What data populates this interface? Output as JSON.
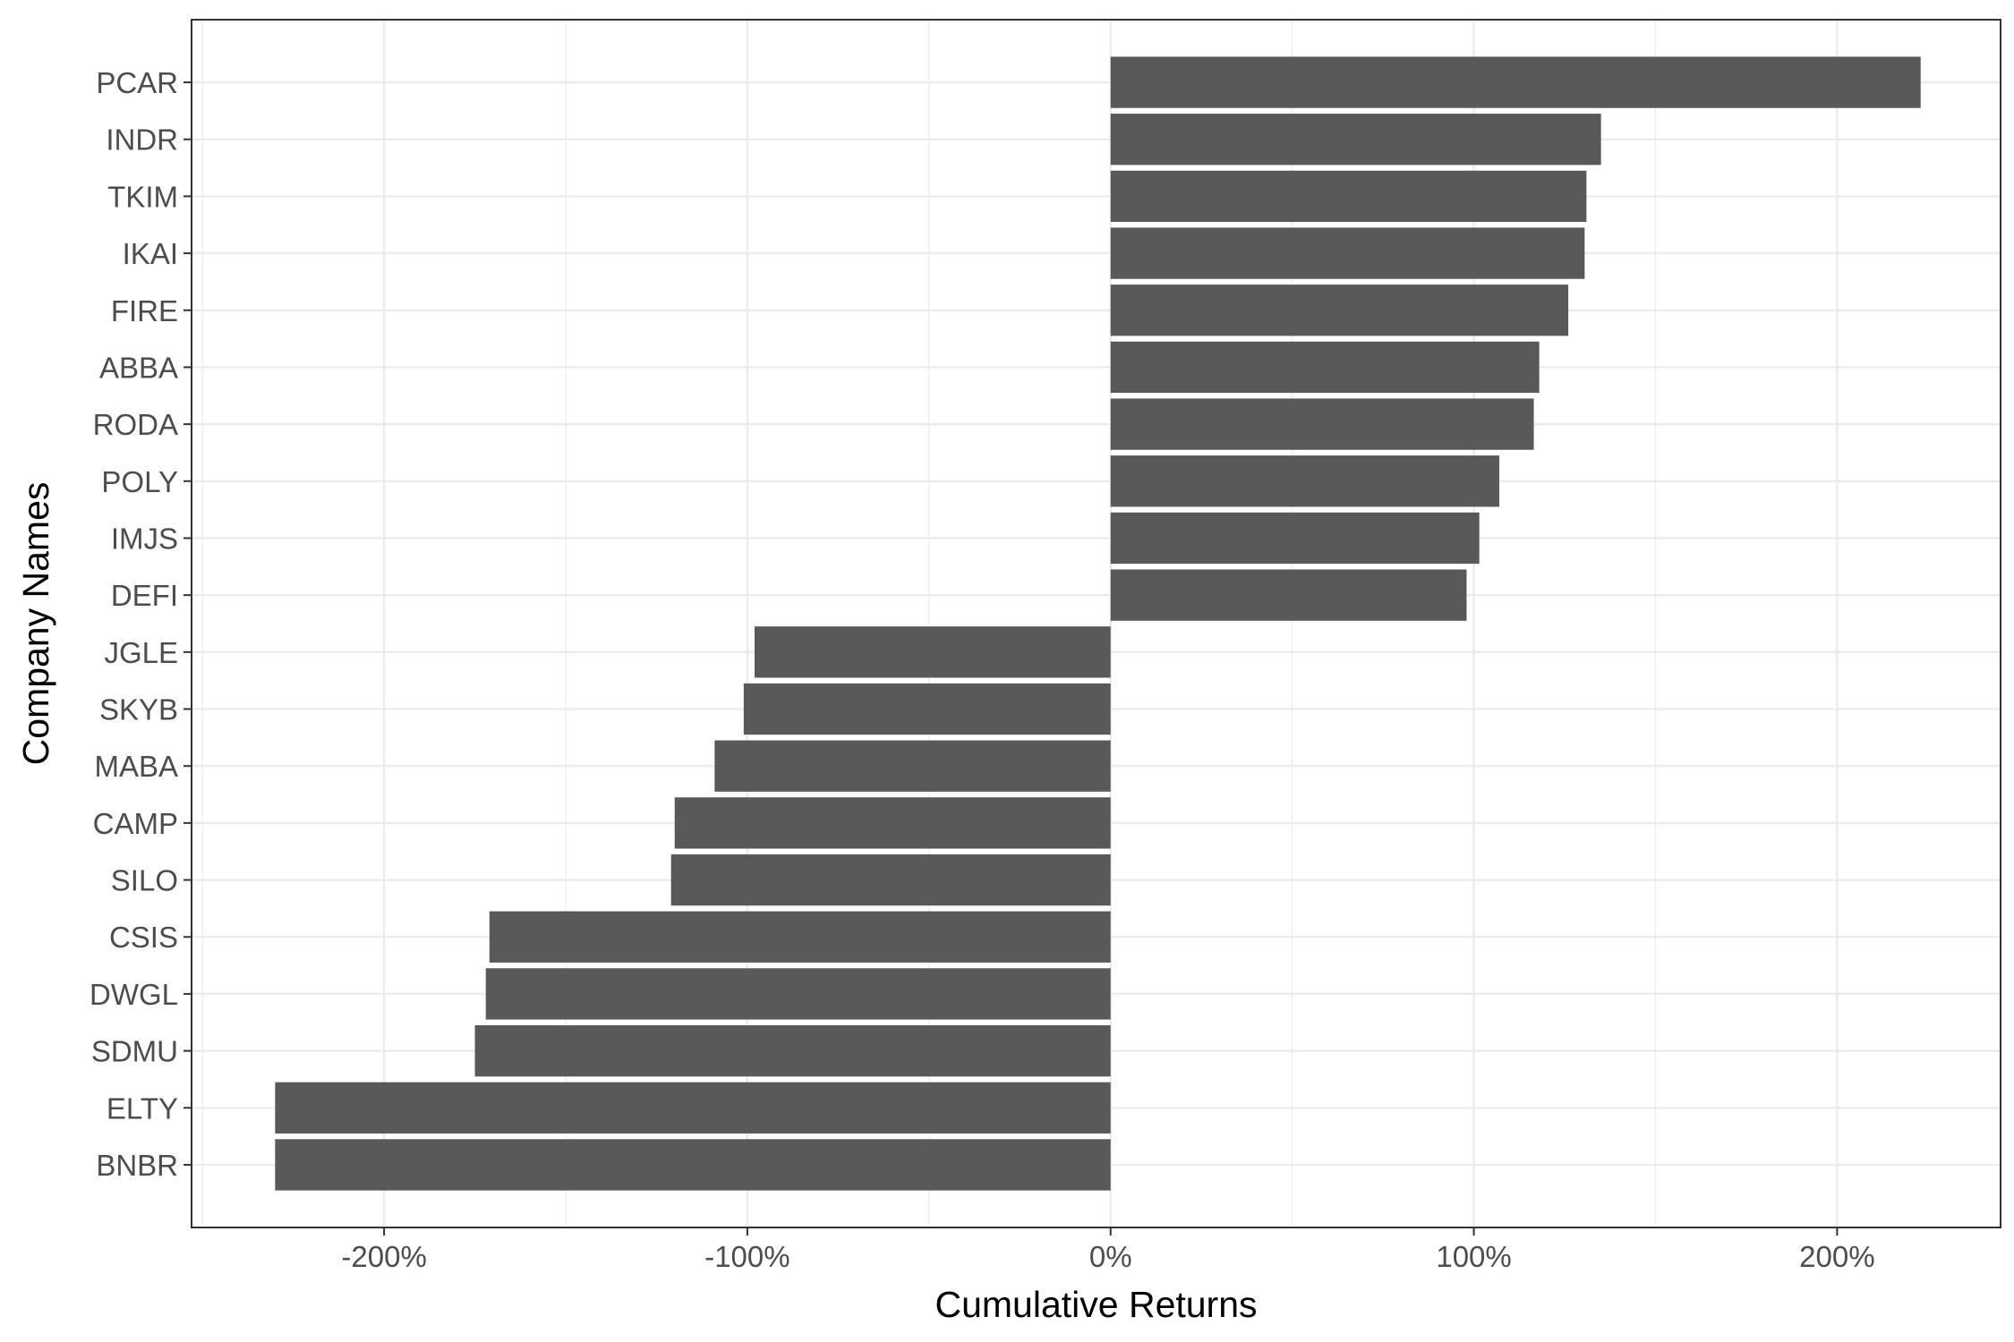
{
  "chart_data": {
    "type": "bar",
    "orientation": "horizontal",
    "title": "",
    "xlabel": "Cumulative Returns",
    "ylabel": "Company Names",
    "categories": [
      "PCAR",
      "INDR",
      "TKIM",
      "IKAI",
      "FIRE",
      "ABBA",
      "RODA",
      "POLY",
      "IMJS",
      "DEFI",
      "JGLE",
      "SKYB",
      "MABA",
      "CAMP",
      "SILO",
      "CSIS",
      "DWGL",
      "SDMU",
      "ELTY",
      "BNBR"
    ],
    "values": [
      223,
      135,
      131,
      130.5,
      126,
      118,
      116.5,
      107,
      101.5,
      98,
      -98,
      -101,
      -109,
      -120,
      -121,
      -171,
      -172,
      -175,
      -230,
      -230
    ],
    "xlim": [
      -253,
      245
    ],
    "xticks": [
      -200,
      -100,
      0,
      100,
      200
    ],
    "xtick_labels": [
      "-200%",
      "-100%",
      "0%",
      "100%",
      "200%"
    ],
    "grid": true,
    "colors": {
      "bar": "#595959",
      "grid": "#ebebeb",
      "panel_border": "#333333",
      "tick_text": "#4d4d4d",
      "axis_title": "#000000",
      "background": "#ffffff"
    }
  }
}
